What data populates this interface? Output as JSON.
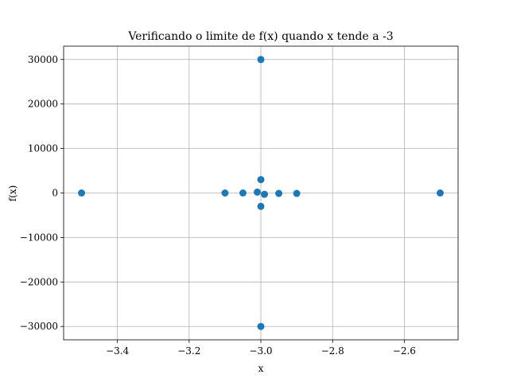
{
  "chart_data": {
    "type": "scatter",
    "title": "Verificando o limite de f(x) quando x tende a -3",
    "xlabel": "x",
    "ylabel": "f(x)",
    "xlim": [
      -3.55,
      -2.45
    ],
    "ylim": [
      -33000,
      33000
    ],
    "grid": true,
    "marker_color": "#1f77b4",
    "x_ticks": [
      -3.4,
      -3.2,
      -3.0,
      -2.8,
      -2.6
    ],
    "x_tick_labels": [
      "−3.4",
      "−3.2",
      "−3.0",
      "−2.8",
      "−2.6"
    ],
    "y_ticks": [
      30000,
      20000,
      10000,
      0,
      -10000,
      -20000,
      -30000
    ],
    "y_tick_labels": [
      "30000",
      "20000",
      "10000",
      "0",
      "−10000",
      "−20000",
      "−30000"
    ],
    "points": [
      {
        "x": -3.5,
        "y": 0
      },
      {
        "x": -3.1,
        "y": 0
      },
      {
        "x": -3.05,
        "y": 0
      },
      {
        "x": -3.01,
        "y": 200
      },
      {
        "x": -3.0,
        "y": 30000
      },
      {
        "x": -3.0,
        "y": 3000
      },
      {
        "x": -3.0,
        "y": -3000
      },
      {
        "x": -3.0,
        "y": -30000
      },
      {
        "x": -2.99,
        "y": -300
      },
      {
        "x": -2.95,
        "y": -100
      },
      {
        "x": -2.9,
        "y": -100
      },
      {
        "x": -2.5,
        "y": 0
      }
    ]
  }
}
